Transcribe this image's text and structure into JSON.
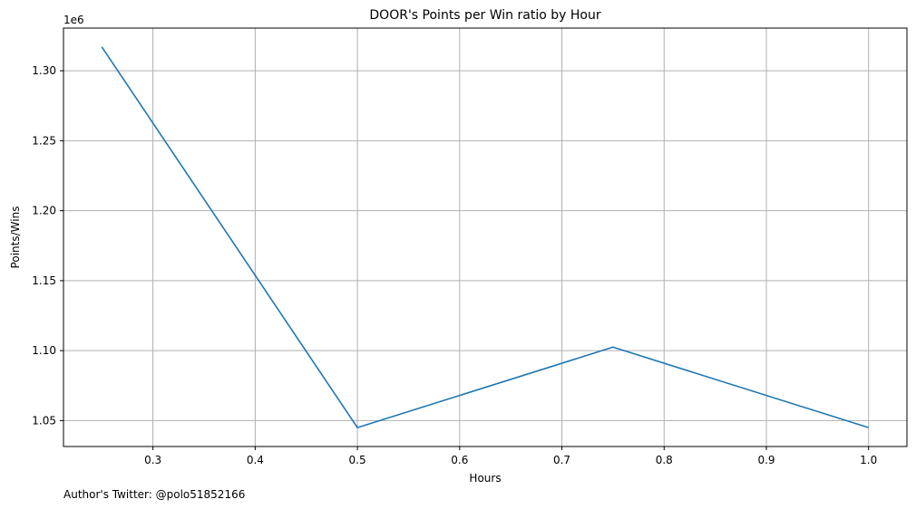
{
  "chart_data": {
    "type": "line",
    "title": "DOOR's Points per Win ratio by Hour",
    "xlabel": "Hours",
    "ylabel": "Points/Wins",
    "y_multiplier_label": "1e6",
    "x": [
      0.25,
      0.5,
      0.75,
      1.0
    ],
    "series": [
      {
        "values": [
          1.317,
          1.045,
          1.1025,
          1.045
        ],
        "color": "#1f77b4"
      }
    ],
    "xlim": [
      0.2125,
      1.0375
    ],
    "ylim": [
      1.0315,
      1.3305
    ],
    "x_ticks": [
      0.3,
      0.4,
      0.5,
      0.6,
      0.7,
      0.8,
      0.9,
      1.0
    ],
    "x_tick_labels": [
      "0.3",
      "0.4",
      "0.5",
      "0.6",
      "0.7",
      "0.8",
      "0.9",
      "1.0"
    ],
    "y_ticks": [
      1.05,
      1.1,
      1.15,
      1.2,
      1.25,
      1.3
    ],
    "y_tick_labels": [
      "1.05",
      "1.10",
      "1.15",
      "1.20",
      "1.25",
      "1.30"
    ],
    "grid": true,
    "grid_color": "#b0b0b0"
  },
  "footer": {
    "note": "Author's Twitter: @polo51852166"
  }
}
